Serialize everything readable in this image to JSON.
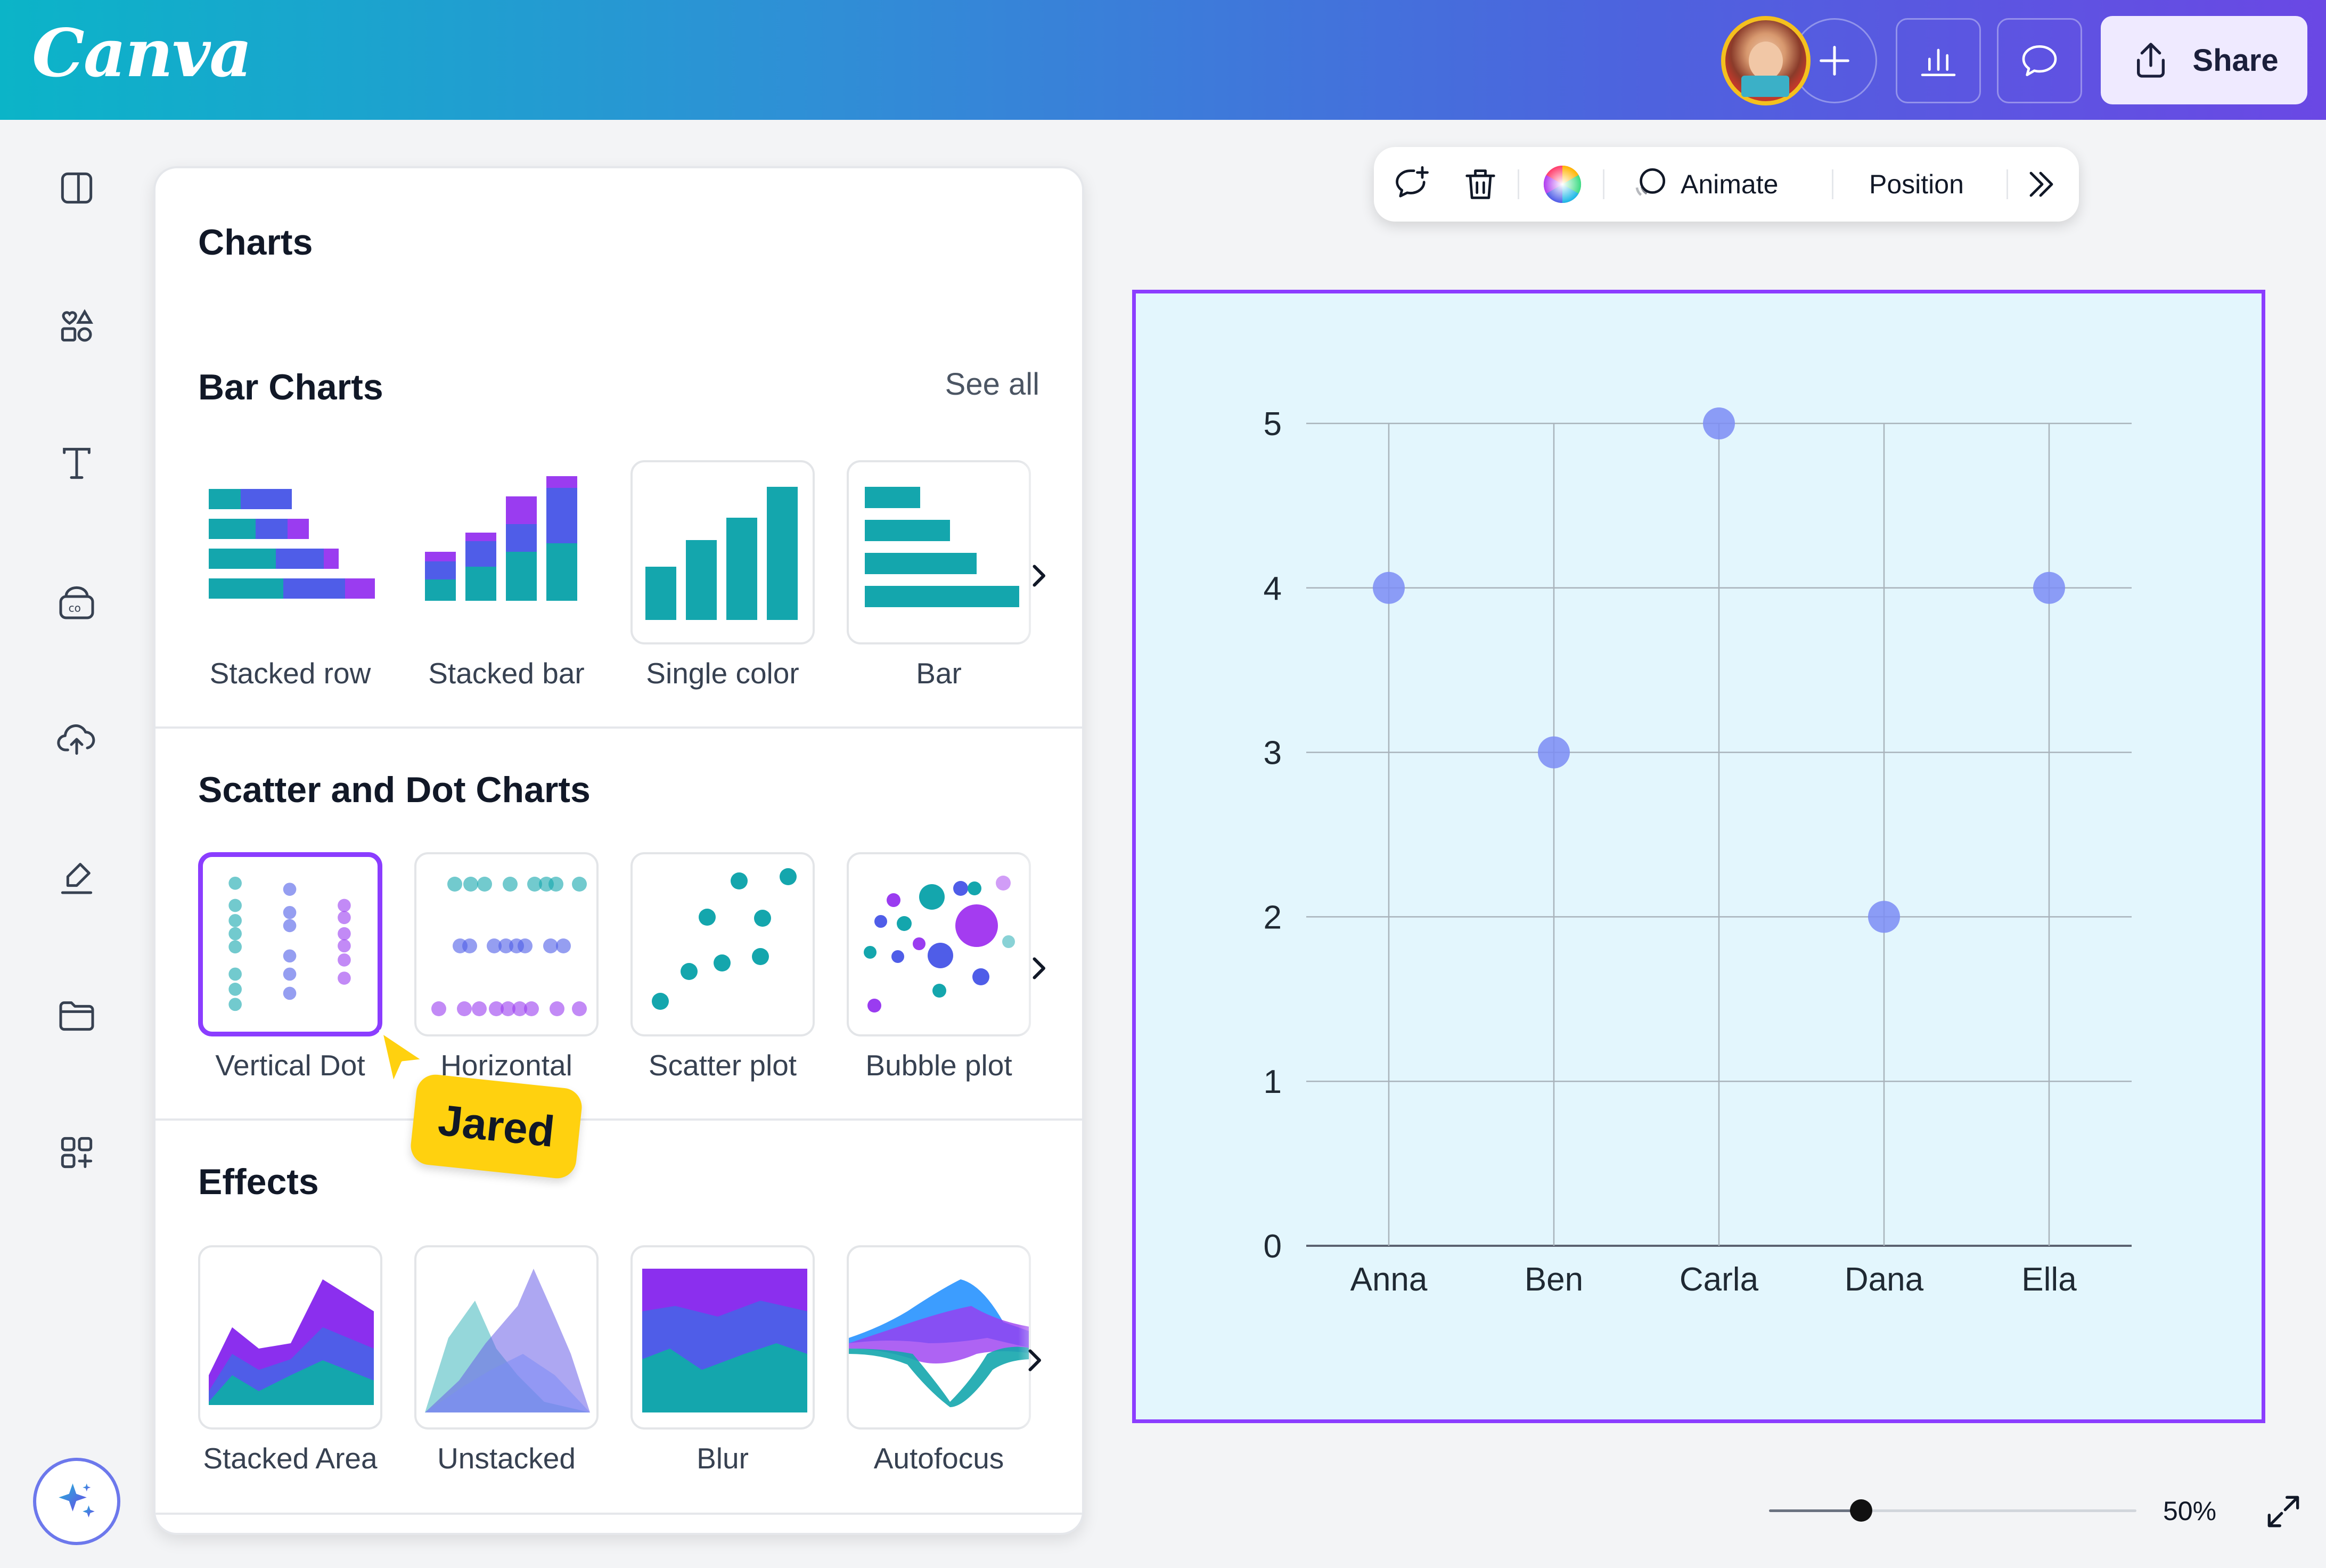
{
  "header": {
    "logo": "Canva",
    "share_label": "Share",
    "icons": [
      "collaborator-avatar",
      "add-collaborator-icon",
      "insights-chart-icon",
      "comment-icon",
      "share-icon"
    ]
  },
  "rail": {
    "icons": [
      "layout-icon",
      "elements-icon",
      "text-icon",
      "brand-icon",
      "uploads-icon",
      "draw-icon",
      "projects-icon",
      "apps-icon",
      "magic-icon"
    ]
  },
  "panel": {
    "title": "Charts",
    "bar_section": {
      "title": "Bar Charts",
      "see_all": "See all",
      "items": [
        {
          "label": "Stacked row"
        },
        {
          "label": "Stacked bar"
        },
        {
          "label": "Single color"
        },
        {
          "label": "Bar"
        }
      ]
    },
    "scatter_section": {
      "title": "Scatter and Dot Charts",
      "items": [
        {
          "label": "Vertical Dot"
        },
        {
          "label": "Horizontal"
        },
        {
          "label": "Scatter plot"
        },
        {
          "label": "Bubble plot"
        }
      ]
    },
    "effects_section": {
      "title": "Effects",
      "items": [
        {
          "label": "Stacked Area"
        },
        {
          "label": "Unstacked"
        },
        {
          "label": "Blur"
        },
        {
          "label": "Autofocus"
        }
      ]
    }
  },
  "cursor": {
    "name": "Jared"
  },
  "toolbar": {
    "animate": "Animate",
    "position": "Position"
  },
  "zoom": {
    "label": "50%",
    "value": 0.5
  },
  "colors": {
    "accent": "#8b3dff",
    "teal": "#14a6ad",
    "blue": "#4f5de8",
    "purple": "#9a3cf0",
    "dot": "#7b8cf5",
    "canvas_bg": "#e3f6fd",
    "cursor": "#ffd10f"
  },
  "chart_data": {
    "type": "scatter",
    "categories": [
      "Anna",
      "Ben",
      "Carla",
      "Dana",
      "Ella"
    ],
    "values": [
      4,
      3,
      5,
      2,
      4
    ],
    "yticks": [
      "0",
      "1",
      "2",
      "3",
      "4",
      "5"
    ],
    "ylim": [
      0,
      5
    ],
    "grid": true,
    "title": "",
    "xlabel": "",
    "ylabel": ""
  }
}
